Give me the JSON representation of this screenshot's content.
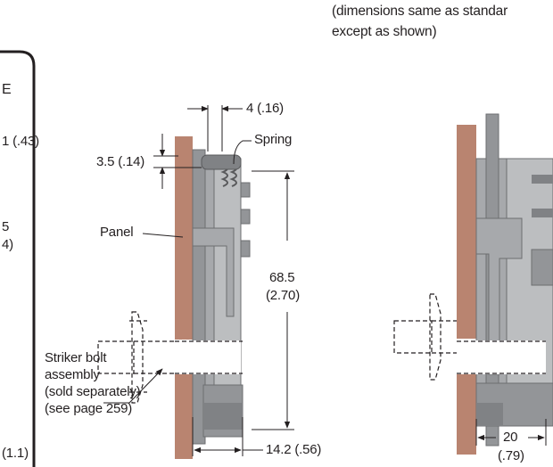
{
  "note": {
    "line1": "(dimensions same as standar",
    "line2": "except as shown)"
  },
  "left_fragment": {
    "letter": "E",
    "dim_top": "1 (.4",
    "dim_top_b": "3",
    "dim_top_c": ")",
    "dim_mid_a": "5",
    "dim_mid_b": "4)",
    "dim_bottom": "(1.1",
    "dim_bottom_b": ")"
  },
  "dimensions": {
    "width_spring_gap": "4 (.16)",
    "offset_top": "3.5 (.14)",
    "height_mm": "68.5",
    "height_in": "(2.70)",
    "depth": "14.2 (.56)",
    "right_depth_mm": "20",
    "right_depth_in": "(.79)"
  },
  "callouts": {
    "spring": "Spring",
    "panel": "Panel",
    "striker_line1": "Striker bolt",
    "striker_line2": "assembly",
    "striker_line3": "(sold separately)",
    "striker_line4": "(see page 259)"
  },
  "colors": {
    "panel": "#b98470",
    "latch_gray": "#a7a9ac",
    "latch_dark": "#6d6e71",
    "line": "#231f20"
  }
}
